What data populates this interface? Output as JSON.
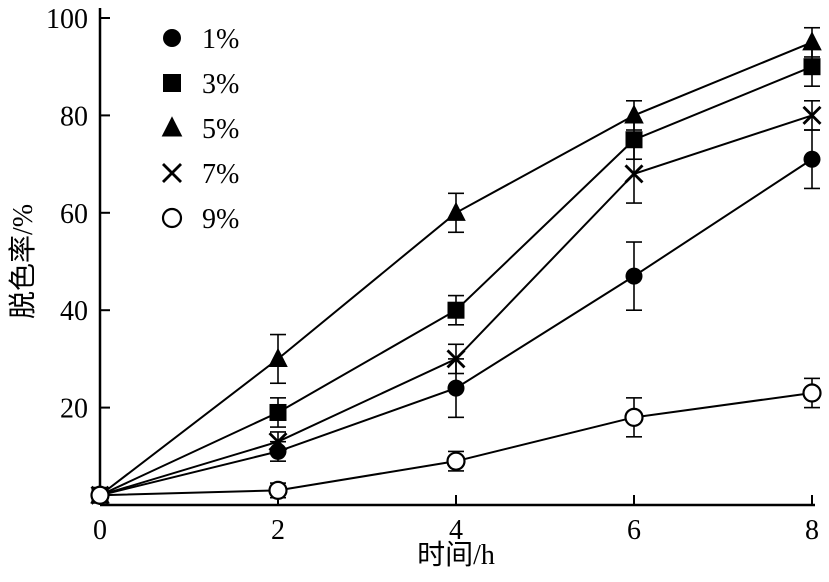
{
  "chart_data": {
    "type": "line",
    "title": "",
    "xlabel": "时间/h",
    "ylabel": "脱色率/%",
    "xlim": [
      0,
      8
    ],
    "ylim": [
      0,
      100
    ],
    "x_ticks": [
      0,
      2,
      4,
      6,
      8
    ],
    "y_ticks": [
      20,
      40,
      60,
      80,
      100
    ],
    "grid": false,
    "legend_position": "top-left",
    "color": "#000000",
    "x": [
      0,
      2,
      4,
      6,
      8
    ],
    "series": [
      {
        "name": "1%",
        "marker": "filled-circle",
        "values": [
          2,
          11,
          24,
          47,
          71
        ],
        "errors": [
          0,
          2,
          6,
          7,
          6
        ]
      },
      {
        "name": "3%",
        "marker": "filled-square",
        "values": [
          2,
          19,
          40,
          75,
          90
        ],
        "errors": [
          0,
          3,
          3,
          4,
          4
        ]
      },
      {
        "name": "5%",
        "marker": "filled-triangle",
        "values": [
          2,
          30,
          60,
          80,
          95
        ],
        "errors": [
          0,
          5,
          4,
          3,
          3
        ]
      },
      {
        "name": "7%",
        "marker": "x-cross",
        "values": [
          2,
          13,
          30,
          68,
          80
        ],
        "errors": [
          0,
          2,
          3,
          6,
          3
        ]
      },
      {
        "name": "9%",
        "marker": "open-circle",
        "values": [
          2,
          3,
          9,
          18,
          23
        ],
        "errors": [
          0,
          1.5,
          2,
          4,
          3
        ]
      }
    ]
  }
}
